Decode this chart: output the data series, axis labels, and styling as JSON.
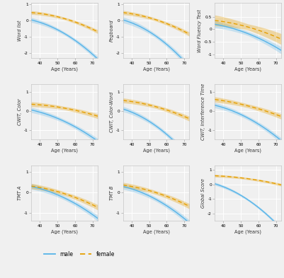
{
  "panels": [
    {
      "ylabel": "Word list",
      "ylim": [
        -2.3,
        1.1
      ],
      "yticks": [
        -2,
        -1,
        0,
        1
      ],
      "male_a0": 0.05,
      "male_a1": -0.025,
      "male_a2": -0.001,
      "male_ci_base": 0.1,
      "male_ci_slope": 0.0025,
      "female_a0": 0.5,
      "female_a1": -0.008,
      "female_a2": -0.0006,
      "female_ci_base": 0.08,
      "female_ci_slope": 0.0018
    },
    {
      "ylabel": "Pegboard",
      "ylim": [
        -2.3,
        1.1
      ],
      "yticks": [
        -2,
        -1,
        0,
        1
      ],
      "male_a0": 0.05,
      "male_a1": -0.03,
      "male_a2": -0.0012,
      "male_ci_base": 0.12,
      "male_ci_slope": 0.003,
      "female_a0": 0.5,
      "female_a1": -0.012,
      "female_a2": -0.0006,
      "female_ci_base": 0.09,
      "female_ci_slope": 0.002
    },
    {
      "ylabel": "Word Fluency Test",
      "ylim": [
        -1.15,
        1.05
      ],
      "yticks": [
        -1.0,
        -0.5,
        0.0,
        0.5
      ],
      "male_a0": 0.2,
      "male_a1": -0.012,
      "male_a2": -0.0004,
      "male_ci_base": 0.08,
      "male_ci_slope": 0.003,
      "female_a0": 0.35,
      "female_a1": -0.008,
      "female_a2": -0.0003,
      "female_ci_base": 0.12,
      "female_ci_slope": 0.005
    },
    {
      "ylabel": "CWIT, Color",
      "ylim": [
        -1.5,
        1.4
      ],
      "yticks": [
        -1,
        0,
        1
      ],
      "male_a0": 0.05,
      "male_a1": -0.02,
      "male_a2": -0.0006,
      "male_ci_base": 0.1,
      "male_ci_slope": 0.002,
      "female_a0": 0.35,
      "female_a1": -0.005,
      "female_a2": -0.0003,
      "female_ci_base": 0.09,
      "female_ci_slope": 0.002
    },
    {
      "ylabel": "CWIT, Color-Word",
      "ylim": [
        -1.5,
        1.4
      ],
      "yticks": [
        -1,
        0,
        1
      ],
      "male_a0": 0.1,
      "male_a1": -0.028,
      "male_a2": -0.001,
      "male_ci_base": 0.1,
      "male_ci_slope": 0.002,
      "female_a0": 0.55,
      "female_a1": -0.01,
      "female_a2": -0.0004,
      "female_ci_base": 0.09,
      "female_ci_slope": 0.002
    },
    {
      "ylabel": "CWIT, Interference Time",
      "ylim": [
        -1.5,
        1.4
      ],
      "yticks": [
        -1,
        0,
        1
      ],
      "male_a0": 0.3,
      "male_a1": -0.022,
      "male_a2": -0.0007,
      "male_ci_base": 0.1,
      "male_ci_slope": 0.002,
      "female_a0": 0.6,
      "female_a1": -0.012,
      "female_a2": -0.0003,
      "female_ci_base": 0.1,
      "female_ci_slope": 0.002
    },
    {
      "ylabel": "TMT A",
      "ylim": [
        -1.4,
        1.3
      ],
      "yticks": [
        -1,
        0,
        1
      ],
      "male_a0": 0.28,
      "male_a1": -0.018,
      "male_a2": -0.0006,
      "male_ci_base": 0.1,
      "male_ci_slope": 0.002,
      "female_a0": 0.3,
      "female_a1": -0.012,
      "female_a2": -0.0004,
      "female_ci_base": 0.09,
      "female_ci_slope": 0.002
    },
    {
      "ylabel": "TMT B",
      "ylim": [
        -1.4,
        1.3
      ],
      "yticks": [
        -1,
        0,
        1
      ],
      "male_a0": 0.28,
      "male_a1": -0.02,
      "male_a2": -0.0007,
      "male_ci_base": 0.1,
      "male_ci_slope": 0.002,
      "female_a0": 0.35,
      "female_a1": -0.012,
      "female_a2": -0.0004,
      "female_ci_base": 0.09,
      "female_ci_slope": 0.002
    },
    {
      "ylabel": "Global Score",
      "ylim": [
        -2.5,
        1.3
      ],
      "yticks": [
        -2,
        -1,
        0,
        1
      ],
      "male_a0": 0.05,
      "male_a1": -0.035,
      "male_a2": -0.0012,
      "male_ci_base": 0.08,
      "male_ci_slope": 0.0015,
      "female_a0": 0.6,
      "female_a1": -0.005,
      "female_a2": -0.0003,
      "female_ci_base": 0.07,
      "female_ci_slope": 0.0012
    }
  ],
  "male_color": "#56b4e9",
  "female_color": "#e69f00",
  "x_min": 35,
  "x_max": 73,
  "x_center": 35,
  "xlabel": "Age (Years)",
  "xticks": [
    40,
    50,
    60,
    70
  ],
  "bg_color": "#f0f0f0",
  "grid_color": "#ffffff",
  "panel_bg": "#f0f0f0"
}
